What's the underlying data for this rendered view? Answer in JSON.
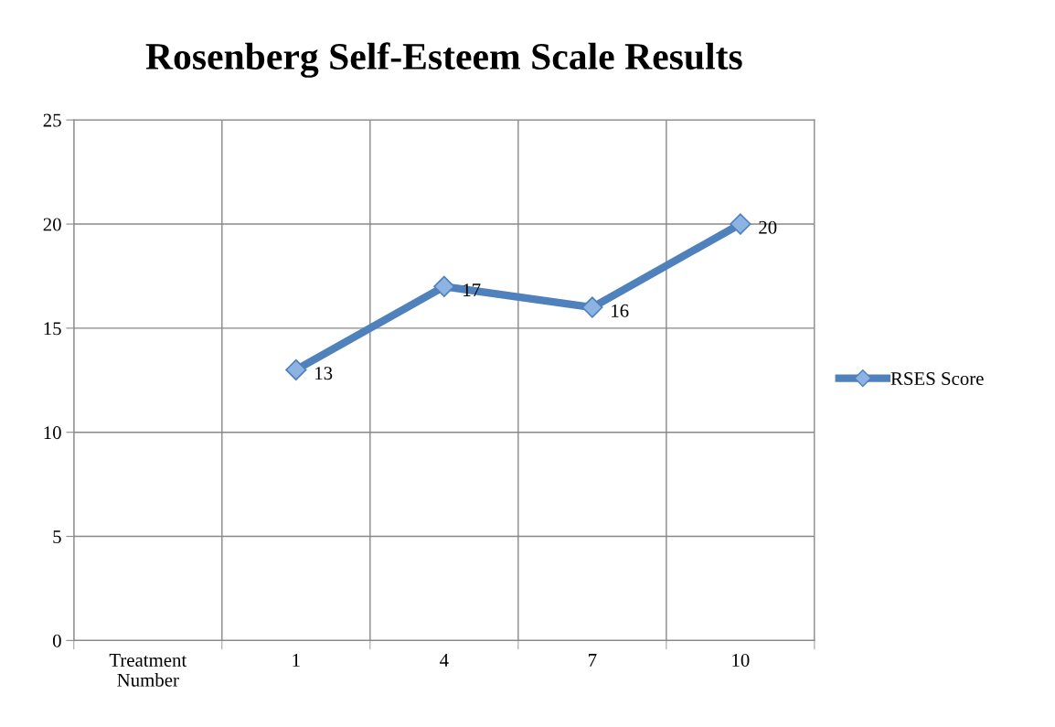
{
  "chart_data": {
    "type": "line",
    "title": "Rosenberg Self-Esteem Scale Results",
    "categories": [
      "Treatment Number",
      "1",
      "4",
      "7",
      "10"
    ],
    "series": [
      {
        "name": "RSES Score",
        "color": "#4f81bd",
        "values": [
          null,
          13,
          17,
          16,
          20
        ]
      }
    ],
    "ylim": [
      0,
      25
    ],
    "yticks": [
      0,
      5,
      10,
      15,
      20,
      25
    ],
    "grid": true,
    "legend": "right",
    "marker": "diamond",
    "line_style": "solid",
    "data_labels": true
  }
}
